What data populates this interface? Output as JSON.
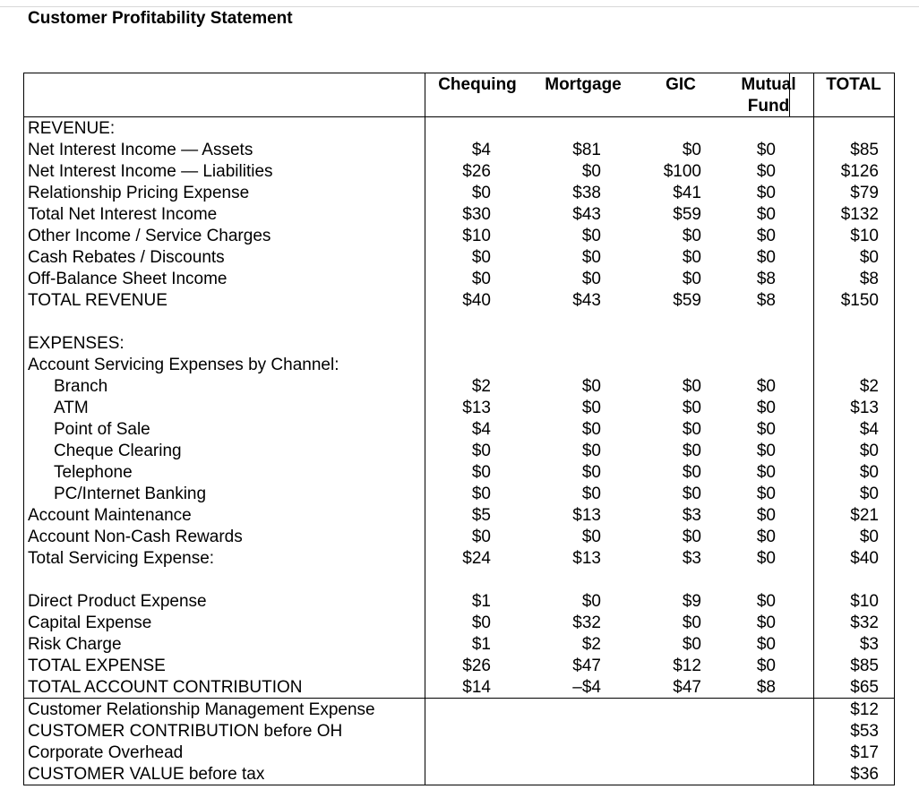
{
  "title": "Customer Profitability Statement",
  "columns": [
    "Chequing",
    "Mortgage",
    "GIC",
    "Mutual Fund",
    "TOTAL"
  ],
  "revenue": {
    "header": "REVENUE:",
    "rows": [
      {
        "label": "Net Interest Income — Assets",
        "values": [
          "$4",
          "$81",
          "$0",
          "$0",
          "$85"
        ]
      },
      {
        "label": "Net Interest Income — Liabilities",
        "values": [
          "$26",
          "$0",
          "$100",
          "$0",
          "$126"
        ]
      },
      {
        "label": "Relationship Pricing Expense",
        "values": [
          "$0",
          "$38",
          "$41",
          "$0",
          "$79"
        ]
      },
      {
        "label": "Total Net Interest Income",
        "values": [
          "$30",
          "$43",
          "$59",
          "$0",
          "$132"
        ]
      },
      {
        "label": "Other Income / Service Charges",
        "values": [
          "$10",
          "$0",
          "$0",
          "$0",
          "$10"
        ]
      },
      {
        "label": "Cash Rebates / Discounts",
        "values": [
          "$0",
          "$0",
          "$0",
          "$0",
          "$0"
        ]
      },
      {
        "label": "Off-Balance Sheet Income",
        "values": [
          "$0",
          "$0",
          "$0",
          "$8",
          "$8"
        ]
      },
      {
        "label": "TOTAL REVENUE",
        "values": [
          "$40",
          "$43",
          "$59",
          "$8",
          "$150"
        ]
      }
    ]
  },
  "expenses": {
    "header": "EXPENSES:",
    "subheader": "Account Servicing Expenses by Channel:",
    "channels": [
      {
        "label": "Branch",
        "values": [
          "$2",
          "$0",
          "$0",
          "$0",
          "$2"
        ]
      },
      {
        "label": "ATM",
        "values": [
          "$13",
          "$0",
          "$0",
          "$0",
          "$13"
        ]
      },
      {
        "label": "Point of Sale",
        "values": [
          "$4",
          "$0",
          "$0",
          "$0",
          "$4"
        ]
      },
      {
        "label": "Cheque Clearing",
        "values": [
          "$0",
          "$0",
          "$0",
          "$0",
          "$0"
        ]
      },
      {
        "label": "Telephone",
        "values": [
          "$0",
          "$0",
          "$0",
          "$0",
          "$0"
        ]
      },
      {
        "label": "PC/Internet Banking",
        "values": [
          "$0",
          "$0",
          "$0",
          "$0",
          "$0"
        ]
      }
    ],
    "rows": [
      {
        "label": "Account Maintenance",
        "values": [
          "$5",
          "$13",
          "$3",
          "$0",
          "$21"
        ]
      },
      {
        "label": "Account Non-Cash Rewards",
        "values": [
          "$0",
          "$0",
          "$0",
          "$0",
          "$0"
        ]
      },
      {
        "label": "Total Servicing Expense:",
        "values": [
          "$24",
          "$13",
          "$3",
          "$0",
          "$40"
        ]
      }
    ],
    "other": [
      {
        "label": "Direct Product Expense",
        "values": [
          "$1",
          "$0",
          "$9",
          "$0",
          "$10"
        ]
      },
      {
        "label": "Capital Expense",
        "values": [
          "$0",
          "$32",
          "$0",
          "$0",
          "$32"
        ]
      },
      {
        "label": "Risk Charge",
        "values": [
          "$1",
          "$2",
          "$0",
          "$0",
          "$3"
        ]
      },
      {
        "label": "TOTAL EXPENSE",
        "values": [
          "$26",
          "$47",
          "$12",
          "$0",
          "$85"
        ]
      },
      {
        "label": "TOTAL ACCOUNT CONTRIBUTION",
        "values": [
          "$14",
          "–$4",
          "$47",
          "$8",
          "$65"
        ]
      }
    ]
  },
  "customer": [
    {
      "label": "Customer Relationship Management Expense",
      "total": "$12"
    },
    {
      "label": "CUSTOMER CONTRIBUTION before OH",
      "total": "$53"
    },
    {
      "label": "Corporate Overhead",
      "total": "$17"
    },
    {
      "label": "CUSTOMER VALUE before tax",
      "total": "$36"
    }
  ]
}
